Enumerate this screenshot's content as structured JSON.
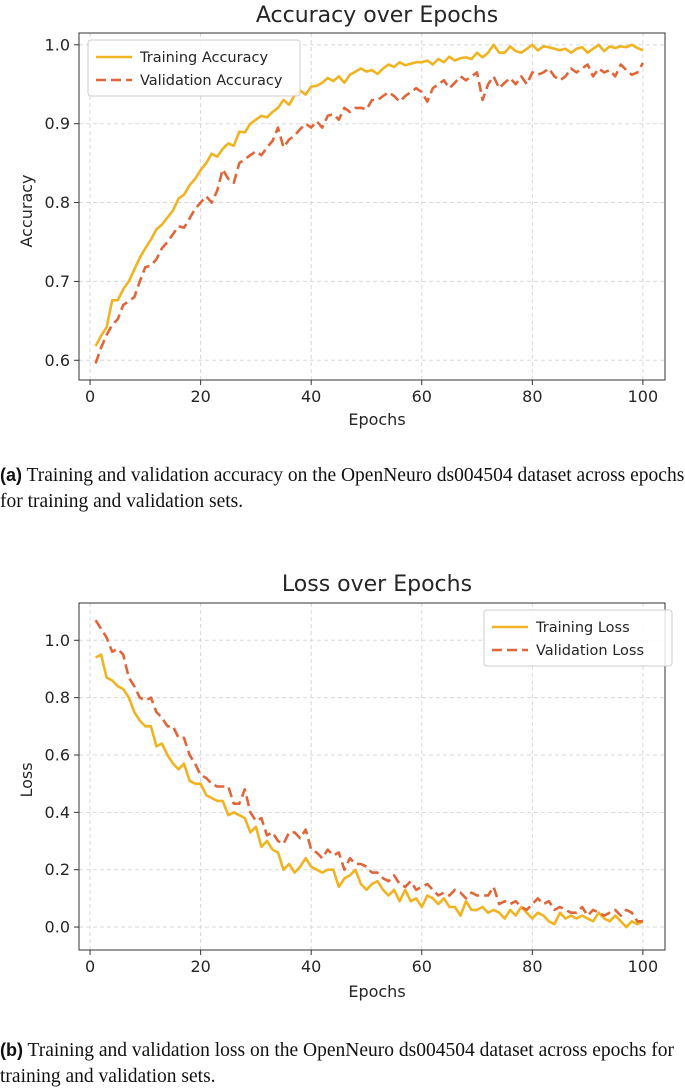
{
  "chart_data": [
    {
      "type": "line",
      "title": "Accuracy over Epochs",
      "xlabel": "Epochs",
      "ylabel": "Accuracy",
      "xlim": [
        -2,
        104
      ],
      "ylim": [
        0.575,
        1.015
      ],
      "xticks": [
        0,
        20,
        40,
        60,
        80,
        100
      ],
      "xtick_labels": [
        "0",
        "20",
        "40",
        "60",
        "80",
        "100"
      ],
      "yticks": [
        0.6,
        0.7,
        0.8,
        0.9,
        1.0
      ],
      "ytick_labels": [
        "0.6",
        "0.7",
        "0.8",
        "0.9",
        "1.0"
      ],
      "grid": true,
      "legend_position": "top-left",
      "x_start": 1,
      "series": [
        {
          "name": "Training Accuracy",
          "style": "solid",
          "color": "#F0B322",
          "values": [
            0.618,
            0.631,
            0.642,
            0.676,
            0.676,
            0.69,
            0.7,
            0.715,
            0.73,
            0.742,
            0.753,
            0.766,
            0.772,
            0.781,
            0.79,
            0.805,
            0.81,
            0.822,
            0.83,
            0.841,
            0.85,
            0.862,
            0.858,
            0.868,
            0.875,
            0.872,
            0.89,
            0.889,
            0.9,
            0.905,
            0.91,
            0.908,
            0.915,
            0.92,
            0.93,
            0.924,
            0.936,
            0.942,
            0.937,
            0.947,
            0.948,
            0.952,
            0.958,
            0.954,
            0.96,
            0.952,
            0.962,
            0.966,
            0.97,
            0.966,
            0.968,
            0.963,
            0.97,
            0.975,
            0.972,
            0.978,
            0.974,
            0.976,
            0.978,
            0.978,
            0.98,
            0.975,
            0.982,
            0.978,
            0.985,
            0.98,
            0.983,
            0.984,
            0.982,
            0.99,
            0.984,
            0.99,
            1.0,
            0.99,
            0.99,
            0.998,
            0.992,
            0.99,
            0.995,
            1.0,
            0.993,
            0.998,
            0.997,
            0.995,
            0.993,
            0.995,
            0.99,
            0.995,
            0.997,
            0.99,
            0.995,
            1.0,
            0.992,
            0.998,
            0.996,
            0.998,
            0.997,
            1.0,
            0.996,
            0.993
          ]
        },
        {
          "name": "Validation Accuracy",
          "style": "dashed",
          "color": "#E0663A",
          "values": [
            0.596,
            0.616,
            0.632,
            0.645,
            0.652,
            0.67,
            0.675,
            0.68,
            0.7,
            0.718,
            0.72,
            0.728,
            0.742,
            0.75,
            0.76,
            0.77,
            0.768,
            0.78,
            0.792,
            0.8,
            0.808,
            0.8,
            0.815,
            0.842,
            0.83,
            0.825,
            0.85,
            0.855,
            0.86,
            0.865,
            0.86,
            0.87,
            0.878,
            0.895,
            0.87,
            0.88,
            0.885,
            0.893,
            0.9,
            0.895,
            0.903,
            0.895,
            0.91,
            0.912,
            0.905,
            0.92,
            0.915,
            0.92,
            0.92,
            0.918,
            0.93,
            0.93,
            0.935,
            0.94,
            0.935,
            0.928,
            0.935,
            0.94,
            0.945,
            0.94,
            0.928,
            0.945,
            0.95,
            0.955,
            0.945,
            0.952,
            0.96,
            0.955,
            0.96,
            0.965,
            0.93,
            0.95,
            0.96,
            0.945,
            0.952,
            0.958,
            0.95,
            0.96,
            0.95,
            0.965,
            0.962,
            0.965,
            0.97,
            0.96,
            0.955,
            0.96,
            0.97,
            0.965,
            0.97,
            0.975,
            0.96,
            0.97,
            0.965,
            0.968,
            0.96,
            0.975,
            0.968,
            0.962,
            0.965,
            0.977
          ]
        }
      ]
    },
    {
      "type": "line",
      "title": "Loss over Epochs",
      "xlabel": "Epochs",
      "ylabel": "Loss",
      "xlim": [
        -2,
        104
      ],
      "ylim": [
        -0.08,
        1.13
      ],
      "xticks": [
        0,
        20,
        40,
        60,
        80,
        100
      ],
      "xtick_labels": [
        "0",
        "20",
        "40",
        "60",
        "80",
        "100"
      ],
      "yticks": [
        0.0,
        0.2,
        0.4,
        0.6,
        0.8,
        1.0
      ],
      "ytick_labels": [
        "0.0",
        "0.2",
        "0.4",
        "0.6",
        "0.8",
        "1.0"
      ],
      "grid": true,
      "legend_position": "top-right",
      "x_start": 1,
      "series": [
        {
          "name": "Training Loss",
          "style": "solid",
          "color": "#F0B322",
          "values": [
            0.94,
            0.95,
            0.87,
            0.86,
            0.84,
            0.83,
            0.8,
            0.75,
            0.72,
            0.7,
            0.7,
            0.63,
            0.64,
            0.6,
            0.57,
            0.55,
            0.57,
            0.51,
            0.5,
            0.5,
            0.46,
            0.45,
            0.44,
            0.44,
            0.39,
            0.4,
            0.39,
            0.38,
            0.33,
            0.35,
            0.28,
            0.3,
            0.27,
            0.26,
            0.2,
            0.22,
            0.19,
            0.21,
            0.24,
            0.21,
            0.2,
            0.19,
            0.2,
            0.2,
            0.14,
            0.17,
            0.18,
            0.2,
            0.15,
            0.13,
            0.15,
            0.16,
            0.13,
            0.11,
            0.13,
            0.09,
            0.13,
            0.09,
            0.1,
            0.07,
            0.11,
            0.1,
            0.08,
            0.1,
            0.07,
            0.07,
            0.04,
            0.09,
            0.06,
            0.06,
            0.07,
            0.05,
            0.06,
            0.05,
            0.03,
            0.06,
            0.04,
            0.07,
            0.05,
            0.03,
            0.05,
            0.04,
            0.02,
            0.01,
            0.05,
            0.03,
            0.04,
            0.03,
            0.04,
            0.03,
            0.02,
            0.05,
            0.03,
            0.02,
            0.04,
            0.02,
            0.0,
            0.02,
            0.01,
            0.02
          ]
        },
        {
          "name": "Validation Loss",
          "style": "dashed",
          "color": "#E0663A",
          "values": [
            1.07,
            1.04,
            1.01,
            0.96,
            0.97,
            0.95,
            0.87,
            0.84,
            0.8,
            0.79,
            0.8,
            0.75,
            0.73,
            0.7,
            0.7,
            0.66,
            0.66,
            0.6,
            0.57,
            0.53,
            0.52,
            0.5,
            0.49,
            0.49,
            0.49,
            0.43,
            0.43,
            0.48,
            0.4,
            0.37,
            0.38,
            0.32,
            0.33,
            0.3,
            0.29,
            0.33,
            0.33,
            0.31,
            0.34,
            0.27,
            0.26,
            0.24,
            0.27,
            0.25,
            0.26,
            0.2,
            0.24,
            0.22,
            0.22,
            0.21,
            0.19,
            0.19,
            0.17,
            0.16,
            0.18,
            0.15,
            0.14,
            0.16,
            0.13,
            0.14,
            0.15,
            0.13,
            0.11,
            0.12,
            0.11,
            0.13,
            0.12,
            0.1,
            0.12,
            0.11,
            0.11,
            0.11,
            0.14,
            0.08,
            0.09,
            0.08,
            0.09,
            0.07,
            0.06,
            0.08,
            0.1,
            0.08,
            0.09,
            0.06,
            0.07,
            0.06,
            0.05,
            0.05,
            0.07,
            0.04,
            0.06,
            0.05,
            0.04,
            0.05,
            0.06,
            0.04,
            0.06,
            0.05,
            0.02,
            0.02
          ]
        }
      ]
    }
  ],
  "captions": [
    {
      "label": "(a)",
      "text": "Training and validation accuracy on the OpenNeuro ds004504 dataset across epochs for training and validation sets."
    },
    {
      "label": "(b)",
      "text": "Training and validation loss on the OpenNeuro ds004504 dataset across epochs for training and validation sets."
    }
  ]
}
